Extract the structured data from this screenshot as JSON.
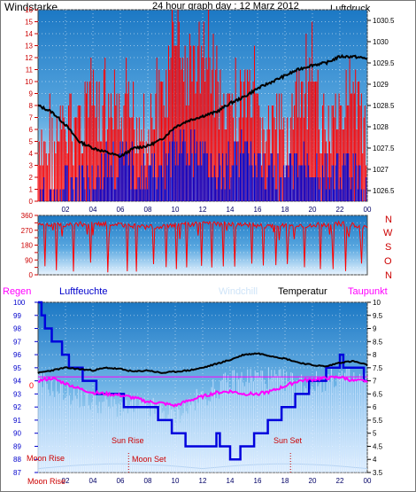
{
  "title": "24 hour graph day : 12 Marz 2012",
  "colors": {
    "wind": "#ff0000",
    "pressure": "#000000",
    "direction": "#ff0000",
    "humidity": "#0000dd",
    "temperature": "#000000",
    "dewpoint": "#ff00ff",
    "windchill": "#cce4ff",
    "rain": "#ff00ff",
    "sun_marker": "#cc0000",
    "moon_marker": "#cc0000",
    "sky_top": "#1f7fc7",
    "sky_bottom": "#eaf5ff"
  },
  "x_ticks": [
    "02",
    "04",
    "06",
    "08",
    "10",
    "12",
    "14",
    "16",
    "18",
    "20",
    "22",
    "00"
  ],
  "chart_data": [
    {
      "type": "line",
      "name": "wind_and_pressure",
      "left_label": "Windstarke",
      "right_label": "Luftdruck",
      "left_axis": {
        "min": 0,
        "max": 16,
        "ticks": [
          "0",
          "1",
          "2",
          "3",
          "4",
          "5",
          "6",
          "7",
          "8",
          "9",
          "10",
          "11",
          "12",
          "13",
          "14",
          "15",
          "16"
        ]
      },
      "right_axis": {
        "min": 1026.25,
        "max": 1030.75,
        "ticks": [
          "1026.5",
          "1027",
          "1027.5",
          "1028",
          "1028.5",
          "1029",
          "1029.5",
          "1030",
          "1030.5"
        ]
      },
      "x_range_hours": [
        0,
        24
      ],
      "grid": true,
      "series": [
        {
          "name": "Luftdruck",
          "axis": "right",
          "x": [
            0,
            1,
            2,
            3,
            4,
            5,
            6,
            7,
            8,
            9,
            10,
            11,
            12,
            13,
            14,
            15,
            16,
            17,
            18,
            19,
            20,
            21,
            22,
            23,
            24
          ],
          "values": [
            1028.5,
            1028.35,
            1028.05,
            1027.65,
            1027.5,
            1027.4,
            1027.3,
            1027.5,
            1027.55,
            1027.7,
            1028.0,
            1028.15,
            1028.25,
            1028.35,
            1028.55,
            1028.7,
            1028.9,
            1029.05,
            1029.2,
            1029.35,
            1029.45,
            1029.5,
            1029.65,
            1029.65,
            1029.6
          ]
        },
        {
          "name": "Wind gust (red)",
          "axis": "left",
          "x": [
            0,
            1,
            2,
            3,
            4,
            5,
            6,
            7,
            8,
            9,
            10,
            11,
            12,
            13,
            14,
            15,
            16,
            17,
            18,
            19,
            20,
            21,
            22,
            23,
            24
          ],
          "values": [
            6,
            8,
            9,
            10,
            12,
            9,
            9,
            11,
            9,
            12,
            16,
            14,
            16,
            13,
            9,
            12,
            10,
            9,
            9,
            11,
            12,
            9,
            12,
            11,
            9
          ]
        },
        {
          "name": "Wind speed (blue)",
          "axis": "left",
          "x": [
            0,
            1,
            2,
            3,
            4,
            5,
            6,
            7,
            8,
            9,
            10,
            11,
            12,
            13,
            14,
            15,
            16,
            17,
            18,
            19,
            20,
            21,
            22,
            23,
            24
          ],
          "values": [
            2,
            2,
            3,
            4,
            4,
            5,
            5,
            5,
            4,
            5,
            6,
            6,
            6,
            5,
            5,
            6,
            5,
            4,
            4,
            5,
            5,
            4,
            5,
            4,
            3
          ]
        }
      ]
    },
    {
      "type": "line",
      "name": "wind_direction",
      "left_axis": {
        "min": 0,
        "max": 360,
        "ticks": [
          "0",
          "45",
          "90",
          "135",
          "180",
          "225",
          "270",
          "315",
          "360"
        ]
      },
      "right_labels": [
        "N",
        "W",
        "S",
        "O",
        "N"
      ],
      "x_range_hours": [
        0,
        24
      ],
      "series": [
        {
          "name": "Direction",
          "x": [
            0,
            2,
            4,
            6,
            8,
            10,
            12,
            14,
            16,
            18,
            20,
            22,
            24
          ],
          "values": [
            300,
            305,
            310,
            300,
            290,
            300,
            310,
            305,
            300,
            295,
            300,
            310,
            290
          ],
          "dropouts": [
            0.5,
            1.3,
            2.6,
            3.8,
            5.1,
            6.5,
            7.2,
            8.4,
            9.3,
            10.1,
            10.8,
            11.9,
            12.7,
            13.5,
            14.3,
            15.6,
            16.4,
            17.3,
            18.2,
            19.4,
            20.6,
            21.5,
            22.4,
            23.6
          ]
        }
      ]
    },
    {
      "type": "line",
      "name": "humidity_temperature",
      "labels": {
        "rain": "Regen",
        "humidity": "Luftfeuchte",
        "windchill": "Windchill",
        "temperature": "Temperatur",
        "dewpoint": "Taupunkt"
      },
      "left_axis": {
        "min": 87,
        "max": 100,
        "ticks": [
          "87",
          "88",
          "89",
          "90",
          "91",
          "92",
          "93",
          "94",
          "95",
          "96",
          "97",
          "98",
          "99",
          "100"
        ]
      },
      "right_axis": {
        "min": 3.5,
        "max": 10,
        "ticks": [
          "3.5",
          "4",
          "4.5",
          "5",
          "5.5",
          "6",
          "6.5",
          "7",
          "7.5",
          "8",
          "8.5",
          "9",
          "9.5",
          "10"
        ]
      },
      "rain_value": "0",
      "x_range_hours": [
        0,
        24
      ],
      "series": [
        {
          "name": "Luftfeuchte",
          "axis": "left",
          "x": [
            0,
            0.3,
            0.8,
            1.5,
            2.2,
            3,
            4,
            5,
            6,
            7,
            8,
            9,
            10,
            11,
            12,
            13,
            14,
            15,
            16,
            17,
            18,
            19,
            20,
            21,
            22,
            23,
            24
          ],
          "values": [
            100,
            98.8,
            97.5,
            96.5,
            95.5,
            94.5,
            93.5,
            93,
            92.5,
            92.3,
            92,
            91.3,
            90.2,
            89.2,
            89,
            89.5,
            88.2,
            88.6,
            89.8,
            90.8,
            91.8,
            92.8,
            93.8,
            94.5,
            95.5,
            94.8,
            94.3
          ]
        },
        {
          "name": "Temperatur",
          "axis": "right",
          "x": [
            0,
            1,
            2,
            3,
            4,
            5,
            6,
            7,
            8,
            9,
            10,
            11,
            12,
            13,
            14,
            15,
            16,
            17,
            18,
            19,
            20,
            21,
            22,
            23,
            24
          ],
          "values": [
            7.3,
            7.4,
            7.5,
            7.45,
            7.4,
            7.5,
            7.45,
            7.35,
            7.4,
            7.3,
            7.35,
            7.4,
            7.5,
            7.65,
            7.8,
            8.0,
            8.05,
            7.95,
            7.85,
            7.7,
            7.6,
            7.55,
            7.7,
            7.75,
            7.6
          ]
        },
        {
          "name": "Taupunkt",
          "axis": "right",
          "x": [
            0,
            1,
            2,
            3,
            4,
            5,
            6,
            7,
            8,
            9,
            10,
            11,
            12,
            13,
            14,
            15,
            16,
            17,
            18,
            19,
            20,
            21,
            22,
            23,
            24
          ],
          "values": [
            7.0,
            7.1,
            6.9,
            6.7,
            6.55,
            6.5,
            6.45,
            6.35,
            6.2,
            6.15,
            6.05,
            6.25,
            6.4,
            6.55,
            6.6,
            6.5,
            6.5,
            6.6,
            6.8,
            7.0,
            7.05,
            7.1,
            7.15,
            7.0,
            7.0
          ]
        },
        {
          "name": "Windchill",
          "axis": "right",
          "x": [
            0,
            2,
            4,
            6,
            8,
            10,
            12,
            14,
            16,
            18,
            20,
            22,
            24
          ],
          "values": [
            7.0,
            6.6,
            6.2,
            6.0,
            6.0,
            5.7,
            6.4,
            7.0,
            7.2,
            7.0,
            6.9,
            7.2,
            7.0
          ]
        }
      ],
      "markers": [
        {
          "label": "Sun Rise",
          "hour": 6.6
        },
        {
          "label": "Moon Set",
          "hour": 6.6
        },
        {
          "label": "Sun Set",
          "hour": 18.4
        },
        {
          "label": "Moon Rise",
          "hour": 0
        }
      ],
      "x_first_label": "Moon Rise"
    }
  ]
}
